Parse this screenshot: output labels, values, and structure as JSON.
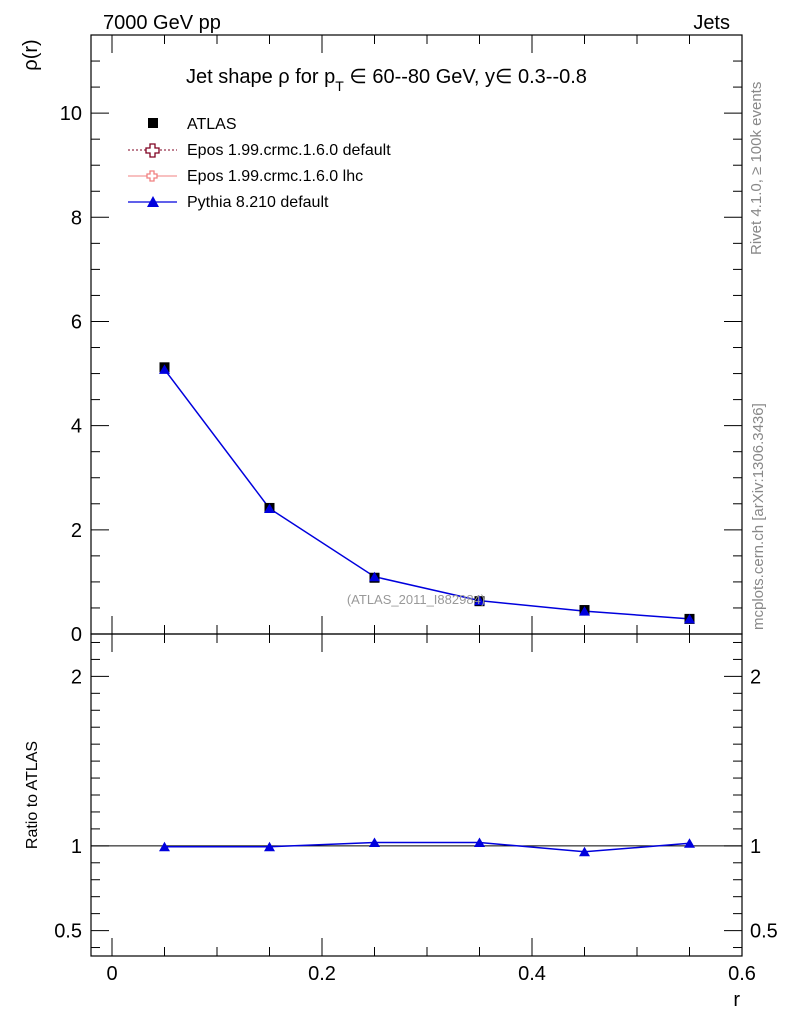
{
  "header": {
    "left": "7000 GeV pp",
    "right": "Jets",
    "side_top": "Rivet 4.1.0, ≥ 100k events",
    "side_bottom": "mcplots.cern.ch [arXiv:1306.3436]"
  },
  "colors": {
    "atlas": "#000000",
    "epos_default": "#7f0020",
    "epos_lhc": "#f08080",
    "pythia": "#0000dd",
    "watermark": "#999999",
    "side_text": "#888888"
  },
  "chart_data": [
    {
      "type": "line",
      "title": "Jet shape ρ for p_T ∈ 60--80 GeV, y ∈ 0.3--0.8",
      "title_parts": {
        "pre": "Jet shape ρ for p",
        "sub": "T",
        "post": " ∈ 60--80 GeV, y∈ 0.3--0.8"
      },
      "ylabel": "ρ(r)",
      "xlim": [
        -0.02,
        0.6
      ],
      "ylim": [
        0,
        11.5
      ],
      "yticks": [
        0,
        2,
        4,
        6,
        8,
        10
      ],
      "ytick_labels": [
        "0",
        "2",
        "4",
        "6",
        "8",
        "10"
      ],
      "watermark": "(ATLAS_2011_I882984)",
      "legend": {
        "position": "top-left",
        "entries": [
          {
            "key": "atlas",
            "label": "ATLAS"
          },
          {
            "key": "epos_default",
            "label": "Epos 1.99.crmc.1.6.0 default"
          },
          {
            "key": "epos_lhc",
            "label": "Epos 1.99.crmc.1.6.0 lhc"
          },
          {
            "key": "pythia",
            "label": "Pythia 8.210 default"
          }
        ]
      },
      "x": [
        0.05,
        0.15,
        0.25,
        0.35,
        0.45,
        0.55
      ],
      "series": [
        {
          "name": "ATLAS",
          "key": "atlas",
          "values": [
            5.12,
            2.42,
            1.08,
            0.63,
            0.46,
            0.29
          ]
        },
        {
          "name": "Pythia 8.210 default",
          "key": "pythia",
          "values": [
            5.08,
            2.41,
            1.1,
            0.64,
            0.44,
            0.29
          ]
        }
      ]
    },
    {
      "type": "line",
      "title": "",
      "ylabel": "Ratio to ATLAS",
      "xlabel": "r",
      "xlim": [
        -0.02,
        0.6
      ],
      "ylim": [
        0.35,
        2.25
      ],
      "yticks": [
        0.5,
        1,
        2
      ],
      "ytick_labels": [
        "0.5",
        "1",
        "2"
      ],
      "xticks": [
        0,
        0.2,
        0.4,
        0.6
      ],
      "xtick_labels": [
        "0",
        "0.2",
        "0.4",
        "0.6"
      ],
      "x": [
        0.05,
        0.15,
        0.25,
        0.35,
        0.45,
        0.55
      ],
      "series": [
        {
          "name": "Pythia 8.210 default",
          "key": "pythia",
          "values": [
            0.995,
            0.995,
            1.02,
            1.02,
            0.965,
            1.015
          ],
          "errors": [
            0.005,
            0.005,
            0.012,
            0.015,
            0.015,
            0.01
          ]
        }
      ],
      "reference": 1
    }
  ]
}
